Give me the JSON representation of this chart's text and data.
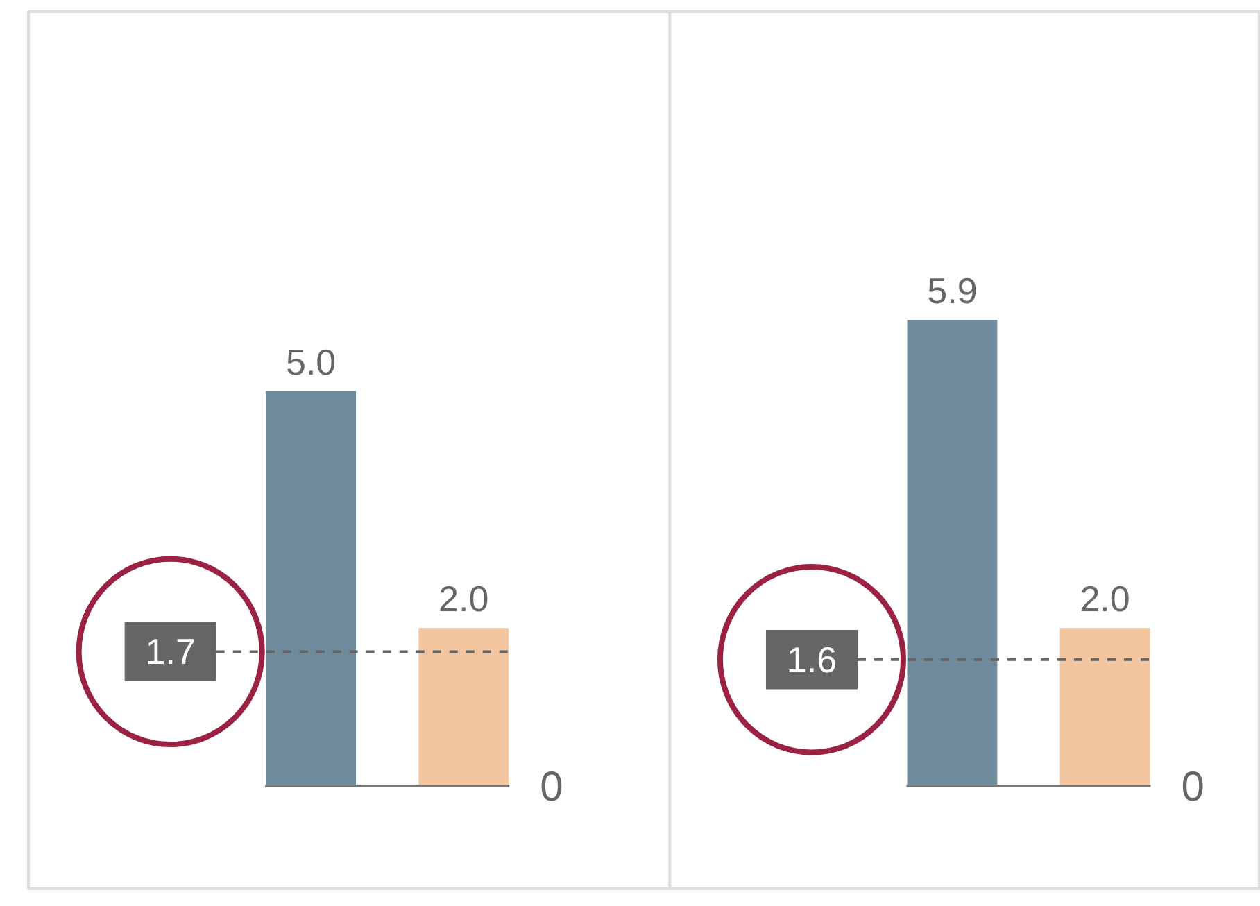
{
  "chart_data": {
    "type": "bar",
    "categories": [
      null,
      null
    ],
    "series": [
      {
        "color": "#6e8a9b",
        "values": [
          5.0,
          5.9
        ],
        "value_labels": [
          "5.0",
          "5.9"
        ]
      },
      {
        "color": "#f3c6a0",
        "values": [
          2.0,
          2.0
        ],
        "value_labels": [
          "2.0",
          "2.0"
        ]
      }
    ],
    "ylim": [
      -1.3,
      9.8
    ],
    "grid": false,
    "ref_lines": [
      {
        "axis": "y",
        "value": 1.7,
        "label": "1.7",
        "color": "#666666",
        "line_style": "dashed"
      },
      {
        "axis": "y",
        "value": 1.6,
        "label": "1.6",
        "color": "#666666",
        "line_style": "dashed"
      }
    ],
    "annotations": [
      "0",
      "0"
    ]
  }
}
